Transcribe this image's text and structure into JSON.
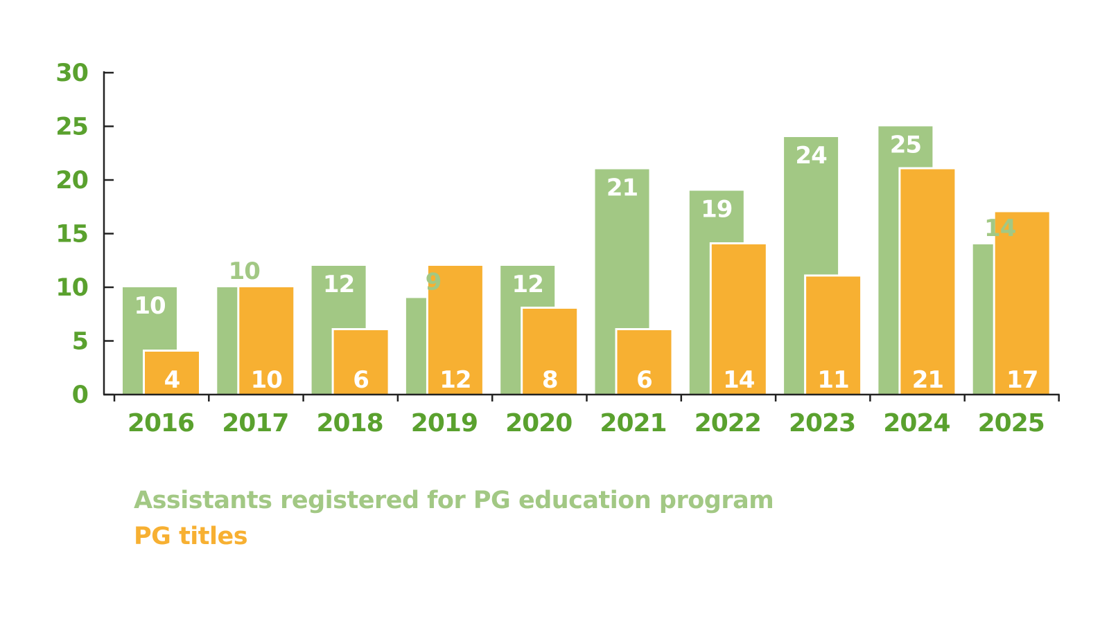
{
  "chart_data": {
    "type": "bar",
    "categories": [
      "2016",
      "2017",
      "2018",
      "2019",
      "2020",
      "2021",
      "2022",
      "2023",
      "2024",
      "2025"
    ],
    "series": [
      {
        "name": "Assistants registered for PG education program",
        "color": "#a2c884",
        "values": [
          10,
          10,
          12,
          9,
          12,
          21,
          19,
          24,
          25,
          14
        ]
      },
      {
        "name": "PG titles",
        "color": "#f7b032",
        "values": [
          4,
          10,
          6,
          12,
          8,
          6,
          14,
          11,
          21,
          17
        ]
      }
    ],
    "yticks": [
      0,
      5,
      10,
      15,
      20,
      25,
      30
    ],
    "ylim": [
      0,
      30
    ],
    "axis_color": "#5aa12e",
    "label_color": "#ffffff",
    "legend": "bottom-left",
    "grid": false
  }
}
